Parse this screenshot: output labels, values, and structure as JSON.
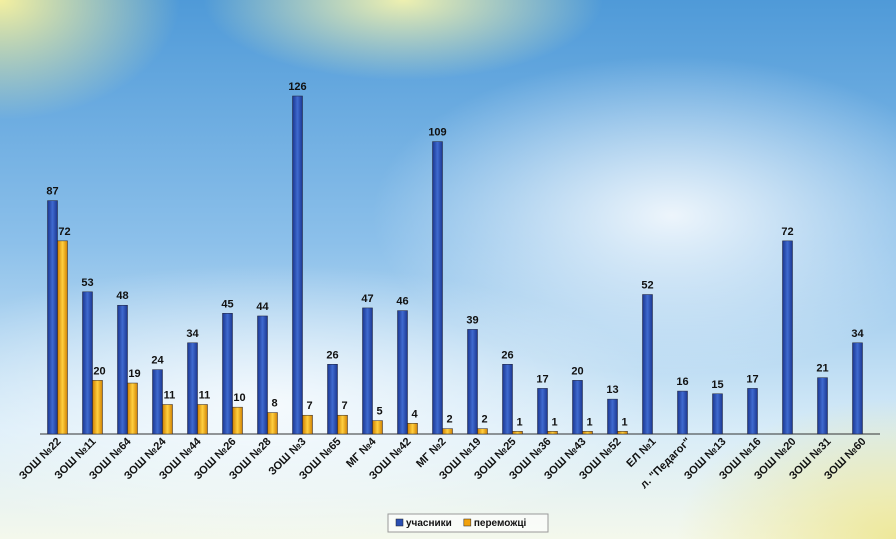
{
  "chart_data": {
    "type": "bar",
    "categories": [
      "ЗОШ №22",
      "ЗОШ №11",
      "ЗОШ №64",
      "ЗОШ №24",
      "ЗОШ №44",
      "ЗОШ №26",
      "ЗОШ №28",
      "ЗОШ №3",
      "ЗОШ №65",
      "МГ №4",
      "ЗОШ №42",
      "МГ №2",
      "ЗОШ №19",
      "ЗОШ №25",
      "ЗОШ №36",
      "ЗОШ №43",
      "ЗОШ №52",
      "ЕЛ №1",
      "л. \"Педагог\"",
      "ЗОШ №13",
      "ЗОШ №16",
      "ЗОШ №20",
      "ЗОШ №31",
      "ЗОШ №60"
    ],
    "series": [
      {
        "name": "учасники",
        "color": "#2b4fb3",
        "values": [
          87,
          53,
          48,
          24,
          34,
          45,
          44,
          126,
          26,
          47,
          46,
          109,
          39,
          26,
          17,
          20,
          13,
          52,
          16,
          15,
          17,
          72,
          21,
          34
        ]
      },
      {
        "name": "переможці",
        "color": "#f2a20c",
        "values": [
          72,
          20,
          19,
          11,
          11,
          10,
          8,
          7,
          7,
          5,
          4,
          2,
          2,
          1,
          1,
          1,
          1,
          null,
          null,
          null,
          null,
          null,
          null,
          null
        ]
      }
    ],
    "legend": "bottom"
  }
}
